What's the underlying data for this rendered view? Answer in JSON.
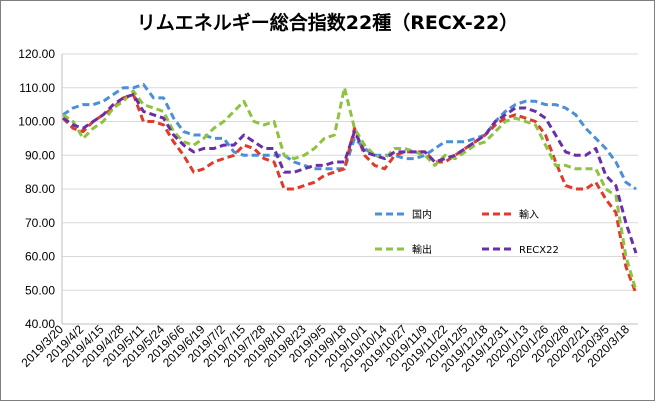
{
  "chart_data": {
    "type": "line",
    "title": "リムエネルギー総合指数22種（RECX-22）",
    "xlabel": "",
    "ylabel": "",
    "ylim": [
      40,
      120
    ],
    "yticks": [
      "40.00",
      "50.00",
      "60.00",
      "70.00",
      "80.00",
      "90.00",
      "100.00",
      "110.00",
      "120.00"
    ],
    "grid": true,
    "legend_position": "inside-lower-right",
    "date_labels": [
      "2019/3/20",
      "2019/4/2",
      "2019/4/15",
      "2019/4/28",
      "2019/5/11",
      "2019/5/24",
      "2019/6/6",
      "2019/6/19",
      "2019/7/2",
      "2019/7/15",
      "2019/7/28",
      "2019/8/10",
      "2019/8/23",
      "2019/9/5",
      "2019/9/18",
      "2019/10/1",
      "2019/10/14",
      "2019/10/27",
      "2019/11/9",
      "2019/11/22",
      "2019/12/5",
      "2019/12/18",
      "2019/12/31",
      "2020/1/13",
      "2020/1/26",
      "2020/2/8",
      "2020/2/21",
      "2020/3/5",
      "2020/3/18"
    ],
    "x": [
      "2019/3/20",
      "2019/3/27",
      "2019/4/2",
      "2019/4/9",
      "2019/4/15",
      "2019/4/22",
      "2019/4/28",
      "2019/5/5",
      "2019/5/11",
      "2019/5/18",
      "2019/5/24",
      "2019/5/31",
      "2019/6/6",
      "2019/6/13",
      "2019/6/19",
      "2019/6/26",
      "2019/7/2",
      "2019/7/9",
      "2019/7/15",
      "2019/7/22",
      "2019/7/28",
      "2019/8/4",
      "2019/8/10",
      "2019/8/17",
      "2019/8/23",
      "2019/8/30",
      "2019/9/5",
      "2019/9/12",
      "2019/9/18",
      "2019/9/25",
      "2019/10/1",
      "2019/10/8",
      "2019/10/14",
      "2019/10/21",
      "2019/10/27",
      "2019/11/3",
      "2019/11/9",
      "2019/11/16",
      "2019/11/22",
      "2019/11/29",
      "2019/12/5",
      "2019/12/12",
      "2019/12/18",
      "2019/12/25",
      "2019/12/31",
      "2020/1/7",
      "2020/1/13",
      "2020/1/20",
      "2020/1/26",
      "2020/2/2",
      "2020/2/8",
      "2020/2/15",
      "2020/2/21",
      "2020/2/28",
      "2020/3/5",
      "2020/3/12",
      "2020/3/18",
      "2020/3/25"
    ],
    "series": [
      {
        "name": "国内",
        "color": "#4a90d9",
        "values": [
          102,
          104,
          105,
          105,
          106,
          108,
          110,
          110,
          111,
          107,
          107,
          101,
          97,
          96,
          96,
          95,
          95,
          91,
          90,
          90,
          90,
          90,
          90,
          88,
          87,
          86,
          86,
          86,
          86,
          95,
          92,
          90,
          90,
          90,
          89,
          89,
          90,
          92,
          94,
          94,
          94,
          95,
          96,
          100,
          103,
          105,
          106,
          106,
          105,
          105,
          104,
          102,
          98,
          95,
          92,
          88,
          82,
          80
        ]
      },
      {
        "name": "輸入",
        "color": "#e03a2a",
        "values": [
          101,
          98,
          97,
          100,
          102,
          104,
          107,
          108,
          100,
          100,
          99,
          94,
          90,
          85,
          86,
          88,
          89,
          90,
          93,
          92,
          89,
          88,
          80,
          80,
          81,
          82,
          84,
          85,
          86,
          98,
          90,
          87,
          86,
          90,
          91,
          91,
          91,
          88,
          88,
          90,
          92,
          94,
          96,
          99,
          101,
          102,
          101,
          100,
          96,
          88,
          81,
          80,
          80,
          82,
          77,
          73,
          57,
          49
        ]
      },
      {
        "name": "輸出",
        "color": "#8fc23f",
        "values": [
          102,
          100,
          95,
          98,
          100,
          104,
          106,
          109,
          105,
          104,
          103,
          97,
          94,
          93,
          95,
          98,
          100,
          103,
          106,
          100,
          99,
          100,
          90,
          89,
          90,
          92,
          95,
          96,
          110,
          98,
          93,
          90,
          89,
          92,
          92,
          91,
          90,
          87,
          90,
          89,
          91,
          93,
          94,
          97,
          100,
          101,
          100,
          99,
          93,
          87,
          87,
          86,
          86,
          86,
          80,
          78,
          60,
          50
        ]
      },
      {
        "name": "RECX22",
        "color": "#6a2fa8",
        "values": [
          101,
          99,
          98,
          100,
          102,
          105,
          107,
          108,
          103,
          102,
          101,
          96,
          93,
          91,
          92,
          92,
          93,
          93,
          96,
          94,
          92,
          92,
          85,
          85,
          86,
          87,
          87,
          88,
          88,
          97,
          91,
          90,
          89,
          91,
          91,
          91,
          91,
          88,
          89,
          90,
          92,
          94,
          96,
          100,
          102,
          104,
          104,
          103,
          101,
          96,
          91,
          90,
          90,
          92,
          84,
          81,
          70,
          61
        ]
      }
    ]
  }
}
